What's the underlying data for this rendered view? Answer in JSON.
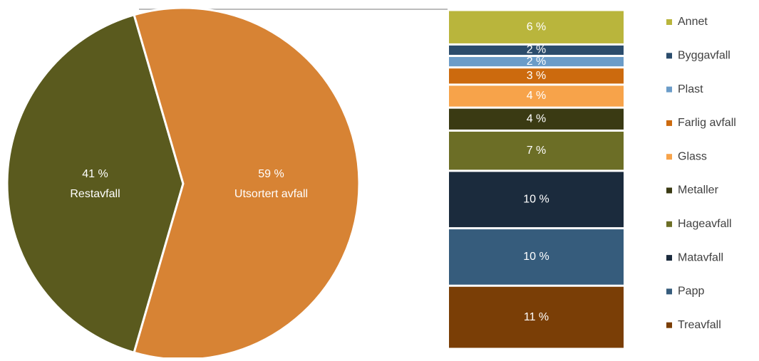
{
  "chart_data": [
    {
      "type": "pie",
      "categories": [
        "Restavfall",
        "Utsortert avfall"
      ],
      "values": [
        41,
        59
      ],
      "value_labels": [
        "41 %",
        "59 %"
      ],
      "colors": [
        "#5a5a1e",
        "#d78334"
      ]
    },
    {
      "type": "bar",
      "stacked": true,
      "legend": "right",
      "series": [
        {
          "name": "Treavfall",
          "color": "#7a3e06",
          "values": [
            11
          ],
          "value_labels": [
            "11 %"
          ]
        },
        {
          "name": "Papp",
          "color": "#365c7c",
          "values": [
            10
          ],
          "value_labels": [
            "10 %"
          ]
        },
        {
          "name": "Matavfall",
          "color": "#1b2b3d",
          "values": [
            10
          ],
          "value_labels": [
            "10 %"
          ]
        },
        {
          "name": "Hageavfall",
          "color": "#6c6e26",
          "values": [
            7
          ],
          "value_labels": [
            "7 %"
          ]
        },
        {
          "name": "Metaller",
          "color": "#3a3a13",
          "values": [
            4
          ],
          "value_labels": [
            "4 %"
          ]
        },
        {
          "name": "Glass",
          "color": "#f7a34a",
          "values": [
            4
          ],
          "value_labels": [
            "4 %"
          ]
        },
        {
          "name": "Farlig avfall",
          "color": "#cc6a0e",
          "values": [
            3
          ],
          "value_labels": [
            "3 %"
          ]
        },
        {
          "name": "Plast",
          "color": "#6b9cc8",
          "values": [
            2
          ],
          "value_labels": [
            "2 %"
          ]
        },
        {
          "name": "Byggavfall",
          "color": "#2b4c6c",
          "values": [
            2
          ],
          "value_labels": [
            "2 %"
          ]
        },
        {
          "name": "Annet",
          "color": "#b9b53c",
          "values": [
            6
          ],
          "value_labels": [
            "6 %"
          ]
        }
      ]
    }
  ]
}
